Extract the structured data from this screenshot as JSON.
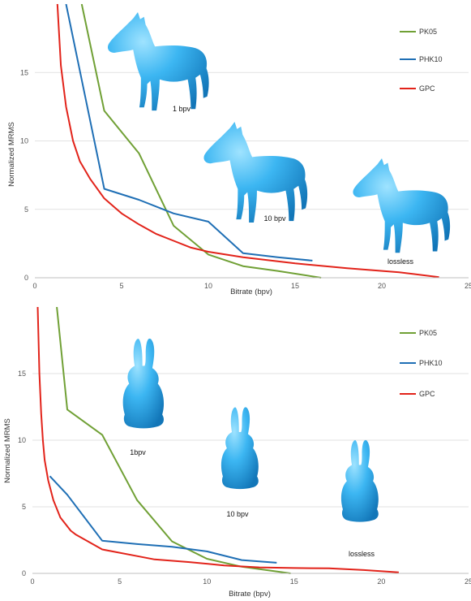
{
  "chart_data": [
    {
      "type": "line",
      "title": "",
      "xlabel": "Bitrate  (bpv)",
      "ylabel": "Normalized  MRMS",
      "xlim": [
        0,
        25
      ],
      "ylim": [
        0,
        20
      ],
      "xticks": [
        "0",
        "5",
        "10",
        "15",
        "20",
        "25"
      ],
      "yticks": [
        "0",
        "5",
        "10",
        "15"
      ],
      "grid": "horizontal",
      "legend": "top-right",
      "series": [
        {
          "name": "PK05",
          "color": "#70a035",
          "points": [
            [
              2.7,
              20
            ],
            [
              4,
              12.2
            ],
            [
              6,
              9.1
            ],
            [
              8,
              3.8
            ],
            [
              10,
              1.7
            ],
            [
              12,
              0.85
            ],
            [
              14,
              0.5
            ],
            [
              16.5,
              0
            ]
          ]
        },
        {
          "name": "PHK10",
          "color": "#1f6fb5",
          "points": [
            [
              1.8,
              20
            ],
            [
              4,
              6.5
            ],
            [
              6,
              5.7
            ],
            [
              8,
              4.7
            ],
            [
              10,
              4.1
            ],
            [
              12,
              1.8
            ],
            [
              14,
              1.5
            ],
            [
              16,
              1.25
            ]
          ]
        },
        {
          "name": "GPC",
          "color": "#e2231a",
          "points": [
            [
              1.3,
              20
            ],
            [
              1.5,
              15.5
            ],
            [
              1.8,
              12.5
            ],
            [
              2.2,
              10
            ],
            [
              2.6,
              8.5
            ],
            [
              3.2,
              7.2
            ],
            [
              4,
              5.8
            ],
            [
              5,
              4.7
            ],
            [
              6,
              3.9
            ],
            [
              7,
              3.2
            ],
            [
              8,
              2.7
            ],
            [
              9,
              2.2
            ],
            [
              10,
              1.9
            ],
            [
              12,
              1.5
            ],
            [
              15,
              1.05
            ],
            [
              18,
              0.7
            ],
            [
              21,
              0.4
            ],
            [
              23.3,
              0.05
            ]
          ]
        }
      ],
      "models": [
        {
          "label": "1 bpv",
          "kind": "horse"
        },
        {
          "label": "10 bpv",
          "kind": "horse"
        },
        {
          "label": "lossless",
          "kind": "horse"
        }
      ]
    },
    {
      "type": "line",
      "title": "",
      "xlabel": "Bitrate  (bpv)",
      "ylabel": "Normalized  MRMS",
      "xlim": [
        0,
        25
      ],
      "ylim": [
        0,
        20
      ],
      "xticks": [
        "0",
        "5",
        "10",
        "15",
        "20",
        "25"
      ],
      "yticks": [
        "0",
        "5",
        "10",
        "15"
      ],
      "grid": "horizontal",
      "legend": "top-right",
      "series": [
        {
          "name": "PK05",
          "color": "#70a035",
          "points": [
            [
              1.4,
              20
            ],
            [
              2,
              12.3
            ],
            [
              4,
              10.4
            ],
            [
              6,
              5.5
            ],
            [
              8,
              2.4
            ],
            [
              10,
              1.1
            ],
            [
              12,
              0.5
            ],
            [
              14.8,
              0
            ]
          ]
        },
        {
          "name": "PHK10",
          "color": "#1f6fb5",
          "points": [
            [
              1,
              7.3
            ],
            [
              2,
              5.9
            ],
            [
              4,
              2.45
            ],
            [
              6,
              2.2
            ],
            [
              8,
              2.0
            ],
            [
              10,
              1.65
            ],
            [
              12,
              1.0
            ],
            [
              14,
              0.8
            ]
          ]
        },
        {
          "name": "GPC",
          "color": "#e2231a",
          "points": [
            [
              0.3,
              20
            ],
            [
              0.4,
              15
            ],
            [
              0.5,
              12
            ],
            [
              0.6,
              10
            ],
            [
              0.7,
              8.5
            ],
            [
              0.9,
              7
            ],
            [
              1.2,
              5.5
            ],
            [
              1.6,
              4.2
            ],
            [
              2.2,
              3.2
            ],
            [
              2.5,
              2.9
            ],
            [
              4,
              1.8
            ],
            [
              6,
              1.3
            ],
            [
              7,
              1.05
            ],
            [
              9,
              0.85
            ],
            [
              11,
              0.6
            ],
            [
              13,
              0.45
            ],
            [
              15,
              0.4
            ],
            [
              17,
              0.38
            ],
            [
              19,
              0.25
            ],
            [
              21,
              0.08
            ]
          ]
        }
      ],
      "models": [
        {
          "label": "1bpv",
          "kind": "bunny"
        },
        {
          "label": "10 bpv",
          "kind": "bunny"
        },
        {
          "label": "lossless",
          "kind": "bunny"
        }
      ]
    }
  ]
}
